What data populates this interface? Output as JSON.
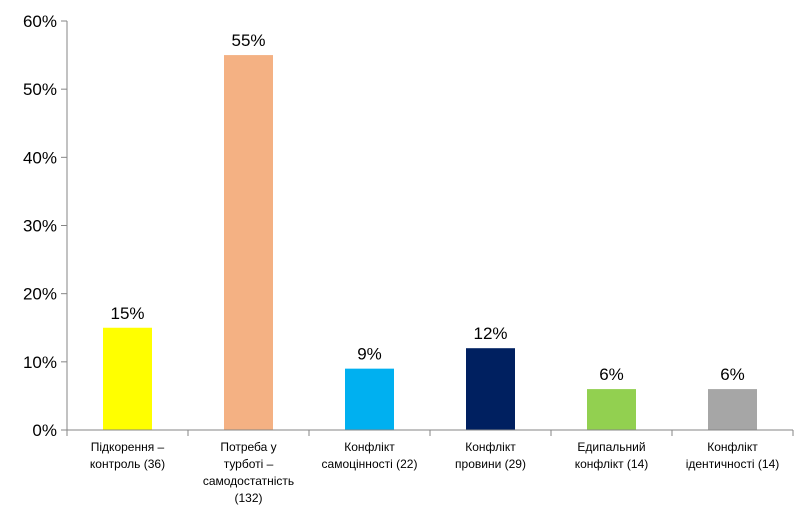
{
  "chart_data": {
    "type": "bar",
    "title": "",
    "xlabel": "",
    "ylabel": "",
    "ylim": [
      0,
      60
    ],
    "y_tick_step": 10,
    "y_tick_suffix": "%",
    "grid": false,
    "legend": "none",
    "categories": [
      [
        "Підкорення –",
        "контроль (36)"
      ],
      [
        "Потреба у",
        "турботі –",
        "самодостатність",
        "(132)"
      ],
      [
        "Конфлікт",
        "самоцінності (22)"
      ],
      [
        "Конфлікт",
        "провини (29)"
      ],
      [
        "Едипальний",
        "конфлікт (14)"
      ],
      [
        "Конфлікт",
        "ідентичності (14)"
      ]
    ],
    "values": [
      15,
      55,
      9,
      12,
      6,
      6
    ],
    "data_labels": [
      "15%",
      "55%",
      "9%",
      "12%",
      "6%",
      "6%"
    ],
    "colors": [
      "#ffff00",
      "#f4b183",
      "#00b0f0",
      "#002060",
      "#92d050",
      "#a6a6a6"
    ]
  }
}
